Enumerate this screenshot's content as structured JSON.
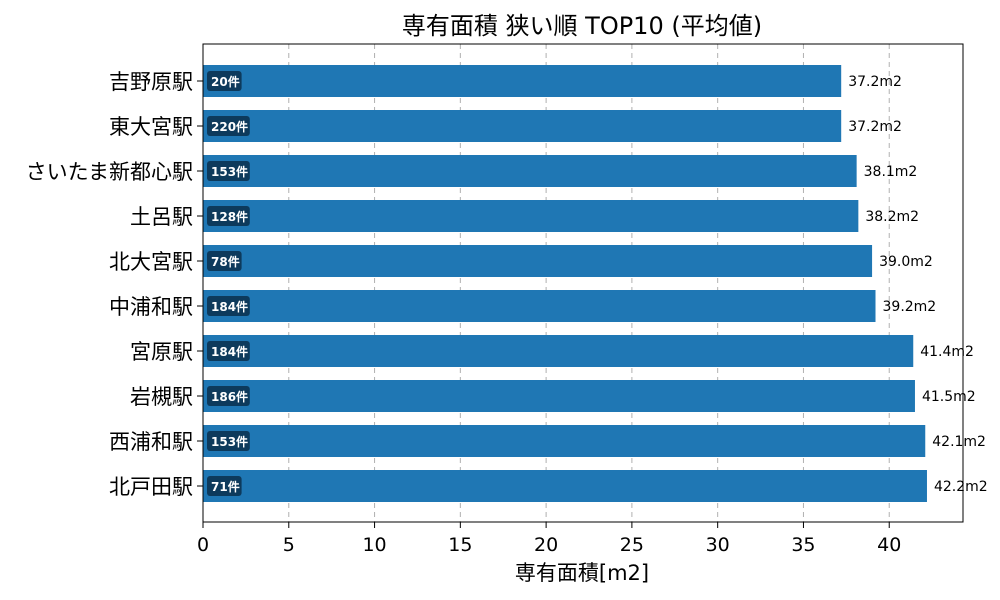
{
  "chart_data": {
    "type": "bar",
    "orientation": "horizontal",
    "title": "専有面積 狭い順 TOP10 (平均値)",
    "xlabel": "専有面積[m2]",
    "ylabel": "",
    "xlim": [
      0,
      44.3
    ],
    "xticks": [
      "0",
      "5",
      "10",
      "15",
      "20",
      "25",
      "30",
      "35",
      "40"
    ],
    "grid": "x-dashed",
    "bar_color": "#1f77b4",
    "badge_color": "#0d3a5c",
    "categories": [
      "吉野原駅",
      "東大宮駅",
      "さいたま新都心駅",
      "土呂駅",
      "北大宮駅",
      "中浦和駅",
      "宮原駅",
      "岩槻駅",
      "西浦和駅",
      "北戸田駅"
    ],
    "values": [
      37.2,
      37.2,
      38.1,
      38.2,
      39.0,
      39.2,
      41.4,
      41.5,
      42.1,
      42.2
    ],
    "value_labels": [
      "37.2m2",
      "37.2m2",
      "38.1m2",
      "38.2m2",
      "39.0m2",
      "39.2m2",
      "41.4m2",
      "41.5m2",
      "42.1m2",
      "42.2m2"
    ],
    "count_labels": [
      "20件",
      "220件",
      "153件",
      "128件",
      "78件",
      "184件",
      "184件",
      "186件",
      "153件",
      "71件"
    ]
  }
}
